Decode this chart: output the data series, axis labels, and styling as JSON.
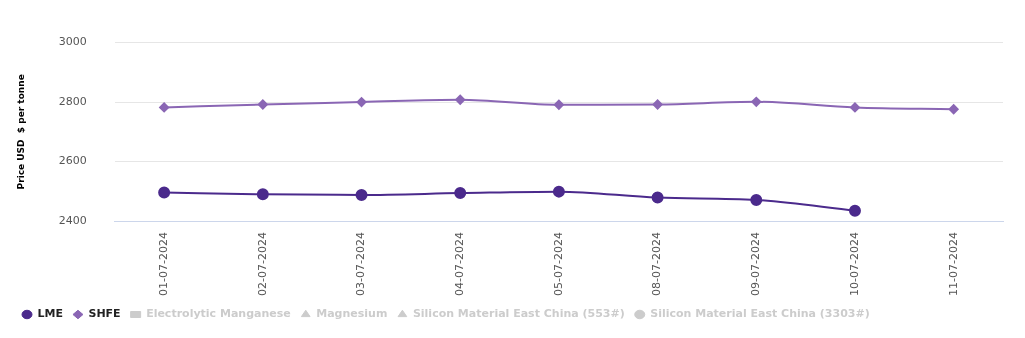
{
  "chart_data": {
    "type": "line",
    "ylabel": "Price USD  $ per tonne",
    "categories": [
      "01-07-2024",
      "02-07-2024",
      "03-07-2024",
      "04-07-2024",
      "05-07-2024",
      "08-07-2024",
      "09-07-2024",
      "10-07-2024",
      "11-07-2024"
    ],
    "series": [
      {
        "name": "LME",
        "color": "#4b2a8c",
        "marker": "circle",
        "values": [
          2496,
          2490,
          2488,
          2494,
          2499,
          2479,
          2471,
          2435,
          null
        ]
      },
      {
        "name": "SHFE",
        "color": "#8a66b4",
        "marker": "diamond",
        "values": [
          2782,
          2792,
          2800,
          2808,
          2791,
          2792,
          2801,
          2782,
          2776
        ]
      },
      {
        "name": "Electrolytic Manganese",
        "color": "#cccccc",
        "marker": "square",
        "values": [
          null,
          null,
          null,
          null,
          null,
          null,
          null,
          null,
          null
        ]
      },
      {
        "name": "Magnesium",
        "color": "#cccccc",
        "marker": "triangle",
        "values": [
          null,
          null,
          null,
          null,
          null,
          null,
          null,
          null,
          null
        ]
      },
      {
        "name": "Silicon Material East China (553#)",
        "color": "#cccccc",
        "marker": "triangle",
        "values": [
          null,
          null,
          null,
          null,
          null,
          null,
          null,
          null,
          null
        ]
      },
      {
        "name": "Silicon Material East China (3303#)",
        "color": "#cccccc",
        "marker": "circle",
        "values": [
          null,
          null,
          null,
          null,
          null,
          null,
          null,
          null,
          null
        ]
      }
    ],
    "ylim": [
      2400,
      3000
    ],
    "yticks": [
      2400,
      2600,
      2800,
      3000
    ],
    "grid": "y",
    "legend": "bottom left"
  }
}
